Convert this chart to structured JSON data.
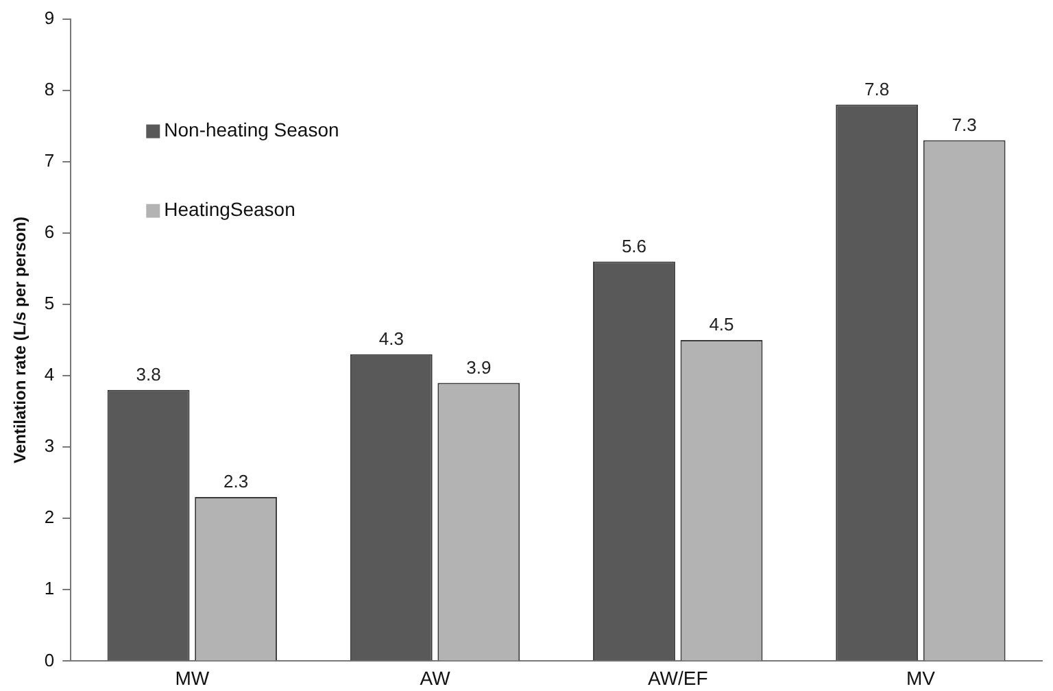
{
  "chart_data": {
    "type": "bar",
    "ylabel": "Ventilation rate (L/s per person)",
    "categories": [
      "MW",
      "AW",
      "AW/EF",
      "MV"
    ],
    "series": [
      {
        "name": "Non-heating Season",
        "color": "#595959",
        "values": [
          3.8,
          4.3,
          5.6,
          7.8
        ]
      },
      {
        "name": "HeatingSeason",
        "color": "#b3b3b3",
        "values": [
          2.3,
          3.9,
          4.5,
          7.3
        ]
      }
    ],
    "ylim": [
      0,
      9
    ],
    "yticks": [
      0,
      1,
      2,
      3,
      4,
      5,
      6,
      7,
      8,
      9
    ],
    "grid": false,
    "legend": "top left",
    "data_labels": true
  }
}
